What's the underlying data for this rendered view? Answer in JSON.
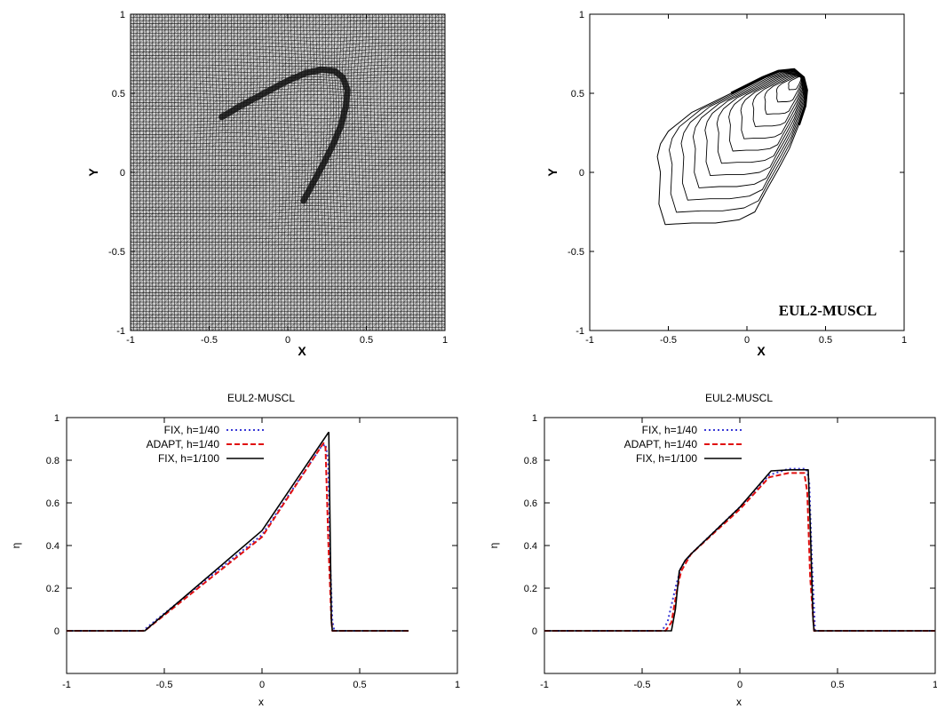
{
  "colors": {
    "fix40": "#3a3ad6",
    "adapt40": "#e01010",
    "fix100": "#000000",
    "axis": "#000000"
  },
  "chart_data": [
    {
      "type": "mesh",
      "xlabel": "X",
      "ylabel": "Y",
      "xlim": [
        -1,
        1
      ],
      "ylim": [
        -1,
        1
      ],
      "xticks": [
        "-1",
        "-0.5",
        "0",
        "0.5",
        "1"
      ],
      "yticks": [
        "-1",
        "-0.5",
        "0",
        "0.5",
        "1"
      ],
      "grid_n": 100,
      "front": [
        [
          -0.42,
          0.35
        ],
        [
          -0.3,
          0.42
        ],
        [
          -0.15,
          0.5
        ],
        [
          0.0,
          0.58
        ],
        [
          0.12,
          0.63
        ],
        [
          0.22,
          0.65
        ],
        [
          0.3,
          0.64
        ],
        [
          0.35,
          0.6
        ],
        [
          0.38,
          0.52
        ],
        [
          0.37,
          0.42
        ],
        [
          0.34,
          0.3
        ],
        [
          0.29,
          0.18
        ],
        [
          0.23,
          0.06
        ],
        [
          0.17,
          -0.05
        ],
        [
          0.1,
          -0.18
        ]
      ]
    },
    {
      "type": "contour",
      "annotation": "EUL2-MUSCL",
      "xlabel": "X",
      "ylabel": "Y",
      "xlim": [
        -1,
        1
      ],
      "ylim": [
        -1,
        1
      ],
      "xticks": [
        "-1",
        "-0.5",
        "0",
        "0.5",
        "1"
      ],
      "yticks": [
        "-1",
        "-0.5",
        "0",
        "0.5",
        "1"
      ],
      "levels": 12,
      "center": [
        0.34,
        0.6
      ]
    },
    {
      "type": "line",
      "title": "EUL2-MUSCL",
      "xlabel": "x",
      "ylabel": "η",
      "xlim": [
        -1,
        1
      ],
      "ylim": [
        -0.2,
        1
      ],
      "xticks": [
        "-1",
        "-0.5",
        "0",
        "0.5",
        "1"
      ],
      "yticks": [
        "0",
        "0.2",
        "0.4",
        "0.6",
        "0.8",
        "1"
      ],
      "legend_position": "top-left",
      "series": [
        {
          "name": "FIX, h=1/40",
          "style": "dotted",
          "color": "#3a3ad6",
          "x": [
            -1,
            -0.61,
            0.0,
            0.3,
            0.325,
            0.338,
            0.35,
            0.36,
            0.37,
            0.75
          ],
          "y": [
            0,
            0,
            0.45,
            0.86,
            0.875,
            0.8,
            0.3,
            0.05,
            0,
            0
          ]
        },
        {
          "name": "ADAPT, h=1/40",
          "style": "dashed",
          "color": "#e01010",
          "x": [
            -1,
            -0.6,
            0.0,
            0.3,
            0.315,
            0.325,
            0.34,
            0.355,
            0.36,
            0.75
          ],
          "y": [
            0,
            0,
            0.44,
            0.86,
            0.88,
            0.86,
            0.4,
            0.05,
            0,
            0
          ]
        },
        {
          "name": "FIX, h=1/100",
          "style": "solid",
          "color": "#000000",
          "x": [
            -1,
            -0.6,
            0.0,
            0.34,
            0.342,
            0.355,
            0.36,
            0.75
          ],
          "y": [
            0,
            0,
            0.47,
            0.93,
            0.93,
            0.05,
            0,
            0
          ]
        }
      ]
    },
    {
      "type": "line",
      "title": "EUL2-MUSCL",
      "xlabel": "x",
      "ylabel": "η",
      "xlim": [
        -1,
        1
      ],
      "ylim": [
        -0.2,
        1
      ],
      "xticks": [
        "-1",
        "-0.5",
        "0",
        "0.5",
        "1"
      ],
      "yticks": [
        "0",
        "0.2",
        "0.4",
        "0.6",
        "0.8",
        "1"
      ],
      "legend_position": "top-left",
      "series": [
        {
          "name": "FIX, h=1/40",
          "style": "dotted",
          "color": "#3a3ad6",
          "x": [
            -1,
            -0.4,
            -0.37,
            -0.33,
            -0.3,
            -0.25,
            0.0,
            0.15,
            0.25,
            0.34,
            0.355,
            0.37,
            0.385,
            1
          ],
          "y": [
            0,
            0,
            0.04,
            0.2,
            0.3,
            0.36,
            0.58,
            0.73,
            0.76,
            0.76,
            0.7,
            0.3,
            0,
            0
          ]
        },
        {
          "name": "ADAPT, h=1/40",
          "style": "dashed",
          "color": "#e01010",
          "x": [
            -1,
            -0.38,
            -0.35,
            -0.32,
            -0.3,
            -0.25,
            0.0,
            0.15,
            0.25,
            0.33,
            0.345,
            0.36,
            0.38,
            1
          ],
          "y": [
            0,
            0,
            0.04,
            0.2,
            0.28,
            0.36,
            0.57,
            0.72,
            0.74,
            0.74,
            0.65,
            0.25,
            0,
            0
          ]
        },
        {
          "name": "FIX, h=1/100",
          "style": "solid",
          "color": "#000000",
          "x": [
            -1,
            -0.35,
            -0.33,
            -0.31,
            -0.28,
            -0.25,
            0.0,
            0.16,
            0.26,
            0.35,
            0.36,
            0.375,
            0.38,
            1
          ],
          "y": [
            0,
            0,
            0.1,
            0.28,
            0.33,
            0.36,
            0.58,
            0.75,
            0.755,
            0.755,
            0.5,
            0.05,
            0,
            0
          ]
        }
      ]
    }
  ]
}
